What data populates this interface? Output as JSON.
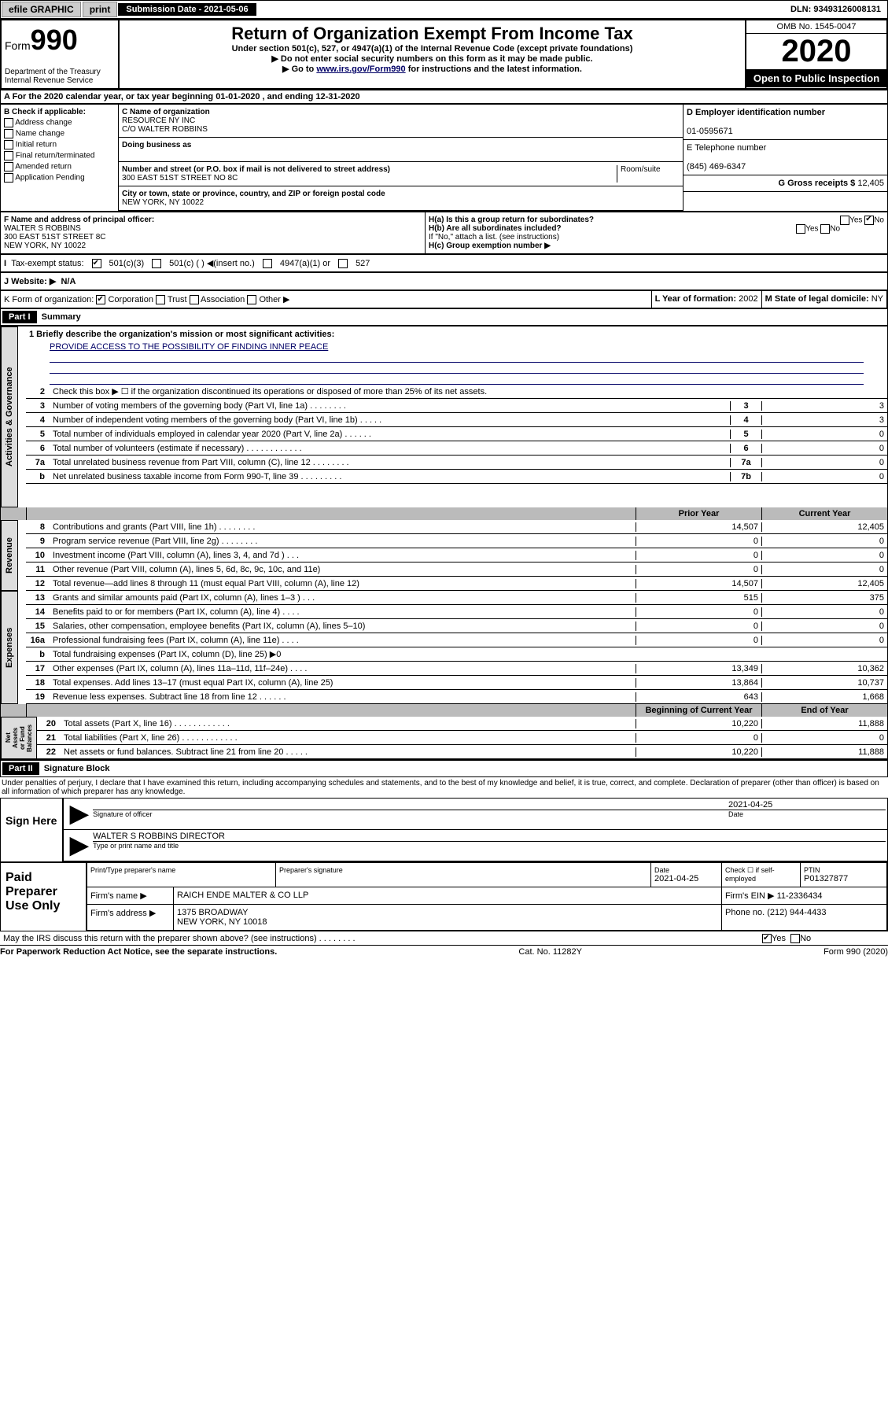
{
  "top": {
    "efile": "efile GRAPHIC",
    "print": "print",
    "sub_label": "Submission Date - 2021-05-06",
    "dln": "DLN: 93493126008131"
  },
  "hdr": {
    "form": "Form",
    "num": "990",
    "title": "Return of Organization Exempt From Income Tax",
    "sub1": "Under section 501(c), 527, or 4947(a)(1) of the Internal Revenue Code (except private foundations)",
    "sub2": "▶ Do not enter social security numbers on this form as it may be made public.",
    "sub3": "▶ Go to www.irs.gov/Form990 for instructions and the latest information.",
    "dept": "Department of the Treasury\nInternal Revenue Service",
    "omb": "OMB No. 1545-0047",
    "yr": "2020",
    "open": "Open to Public Inspection"
  },
  "a_row": "A For the 2020 calendar year, or tax year beginning 01-01-2020    , and ending 12-31-2020",
  "b_checks": {
    "title": "B Check if applicable:",
    "addr": "Address change",
    "name": "Name change",
    "init": "Initial return",
    "final": "Final return/terminated",
    "amend": "Amended return",
    "app": "Application Pending"
  },
  "c": {
    "name_label": "C Name of organization",
    "name": "RESOURCE NY INC",
    "care": "C/O WALTER ROBBINS",
    "dba_label": "Doing business as",
    "addr_label": "Number and street (or P.O. box if mail is not delivered to street address)",
    "suite_label": "Room/suite",
    "addr": "300 EAST 51ST STREET NO 8C",
    "city_label": "City or town, state or province, country, and ZIP or foreign postal code",
    "city": "NEW YORK, NY  10022"
  },
  "d": {
    "label": "D Employer identification number",
    "val": "01-0595671"
  },
  "e": {
    "label": "E Telephone number",
    "val": "(845) 469-6347"
  },
  "g": {
    "label": "G Gross receipts $",
    "val": "12,405"
  },
  "f": {
    "label": "F Name and address of principal officer:",
    "name": "WALTER S ROBBINS",
    "addr1": "300 EAST 51ST STREET 8C",
    "addr2": "NEW YORK, NY  10022"
  },
  "h": {
    "a": "H(a)  Is this a group return for subordinates?",
    "b": "H(b)  Are all subordinates included?",
    "note": "If \"No,\" attach a list. (see instructions)",
    "c": "H(c)  Group exemption number ▶"
  },
  "i_row": {
    "label": "Tax-exempt status:",
    "c1": "501(c)(3)",
    "c2": "501(c) (  ) ◀(insert no.)",
    "c3": "4947(a)(1) or",
    "c4": "527"
  },
  "j_row": {
    "label": "J   Website: ▶",
    "val": "N/A"
  },
  "k_row": {
    "label": "K Form of organization:",
    "c1": "Corporation",
    "c2": "Trust",
    "c3": "Association",
    "c4": "Other ▶"
  },
  "l_row": {
    "label": "L Year of formation:",
    "val": "2002"
  },
  "m_row": {
    "label": "M State of legal domicile:",
    "val": "NY"
  },
  "p1": {
    "hdr": "Part I",
    "title": "Summary"
  },
  "mission": {
    "q": "1  Briefly describe the organization's mission or most significant activities:",
    "txt": "PROVIDE ACCESS TO THE POSSIBILITY OF FINDING INNER PEACE"
  },
  "vtabs": {
    "gov": "Activities & Governance",
    "rev": "Revenue",
    "exp": "Expenses",
    "net": "Net Assets or Fund Balances"
  },
  "gov_lines": [
    {
      "n": "2",
      "t": "Check this box ▶ ☐  if the organization discontinued its operations or disposed of more than 25% of its net assets.",
      "box": "",
      "v": ""
    },
    {
      "n": "3",
      "t": "Number of voting members of the governing body (Part VI, line 1a)   .    .    .    .    .    .    .    .",
      "box": "3",
      "v": "3"
    },
    {
      "n": "4",
      "t": "Number of independent voting members of the governing body (Part VI, line 1b)   .    .    .    .    .",
      "box": "4",
      "v": "3"
    },
    {
      "n": "5",
      "t": "Total number of individuals employed in calendar year 2020 (Part V, line 2a)   .    .    .    .    .    .",
      "box": "5",
      "v": "0"
    },
    {
      "n": "6",
      "t": "Total number of volunteers (estimate if necessary)   .    .    .    .    .    .    .    .    .    .    .    .",
      "box": "6",
      "v": "0"
    },
    {
      "n": "7a",
      "t": "Total unrelated business revenue from Part VIII, column (C), line 12   .    .    .    .    .    .    .    .",
      "box": "7a",
      "v": "0"
    },
    {
      "n": "b",
      "t": "Net unrelated business taxable income from Form 990-T, line 39   .    .    .    .    .    .    .    .    .",
      "box": "7b",
      "v": "0"
    }
  ],
  "two_col_hdr": {
    "py": "Prior Year",
    "cy": "Current Year"
  },
  "rev_lines": [
    {
      "n": "8",
      "t": "Contributions and grants (Part VIII, line 1h)   .    .    .    .    .    .    .    .",
      "py": "14,507",
      "cy": "12,405"
    },
    {
      "n": "9",
      "t": "Program service revenue (Part VIII, line 2g)   .    .    .    .    .    .    .    .",
      "py": "0",
      "cy": "0"
    },
    {
      "n": "10",
      "t": "Investment income (Part VIII, column (A), lines 3, 4, and 7d )    .    .    .",
      "py": "0",
      "cy": "0"
    },
    {
      "n": "11",
      "t": "Other revenue (Part VIII, column (A), lines 5, 6d, 8c, 9c, 10c, and 11e)",
      "py": "0",
      "cy": "0"
    },
    {
      "n": "12",
      "t": "Total revenue—add lines 8 through 11 (must equal Part VIII, column (A), line 12)",
      "py": "14,507",
      "cy": "12,405"
    }
  ],
  "exp_lines": [
    {
      "n": "13",
      "t": "Grants and similar amounts paid (Part IX, column (A), lines 1–3 )   .    .    .",
      "py": "515",
      "cy": "375"
    },
    {
      "n": "14",
      "t": "Benefits paid to or for members (Part IX, column (A), line 4)   .    .    .    .",
      "py": "0",
      "cy": "0"
    },
    {
      "n": "15",
      "t": "Salaries, other compensation, employee benefits (Part IX, column (A), lines 5–10)",
      "py": "0",
      "cy": "0"
    },
    {
      "n": "16a",
      "t": "Professional fundraising fees (Part IX, column (A), line 11e)   .    .    .    .",
      "py": "0",
      "cy": "0"
    },
    {
      "n": "b",
      "t": "Total fundraising expenses (Part IX, column (D), line 25) ▶0",
      "py": "",
      "cy": ""
    },
    {
      "n": "17",
      "t": "Other expenses (Part IX, column (A), lines 11a–11d, 11f–24e)   .    .    .    .",
      "py": "13,349",
      "cy": "10,362"
    },
    {
      "n": "18",
      "t": "Total expenses. Add lines 13–17 (must equal Part IX, column (A), line 25)",
      "py": "13,864",
      "cy": "10,737"
    },
    {
      "n": "19",
      "t": "Revenue less expenses. Subtract line 18 from line 12   .    .    .    .    .    .",
      "py": "643",
      "cy": "1,668"
    }
  ],
  "net_hdr": {
    "py": "Beginning of Current Year",
    "cy": "End of Year"
  },
  "net_lines": [
    {
      "n": "20",
      "t": "Total assets (Part X, line 16)   .    .    .    .    .    .    .    .    .    .    .    .",
      "py": "10,220",
      "cy": "11,888"
    },
    {
      "n": "21",
      "t": "Total liabilities (Part X, line 26)   .    .    .    .    .    .    .    .    .    .    .    .",
      "py": "0",
      "cy": "0"
    },
    {
      "n": "22",
      "t": "Net assets or fund balances. Subtract line 21 from line 20   .    .    .    .    .",
      "py": "10,220",
      "cy": "11,888"
    }
  ],
  "p2": {
    "hdr": "Part II",
    "title": "Signature Block"
  },
  "perjury": "Under penalties of perjury, I declare that I have examined this return, including accompanying schedules and statements, and to the best of my knowledge and belief, it is true, correct, and complete. Declaration of preparer (other than officer) is based on all information of which preparer has any knowledge.",
  "sign": {
    "here": "Sign Here",
    "sig_of": "Signature of officer",
    "date": "2021-04-25",
    "date_lbl": "Date",
    "name": "WALTER S ROBBINS  DIRECTOR",
    "name_lbl": "Type or print name and title"
  },
  "paid": {
    "title": "Paid Preparer Use Only",
    "h1": "Print/Type preparer's name",
    "h2": "Preparer's signature",
    "h3": "Date",
    "h3v": "2021-04-25",
    "h4": "Check ☐ if self-employed",
    "h5": "PTIN",
    "h5v": "P01327877",
    "firm_lbl": "Firm's name    ▶",
    "firm": "RAICH ENDE MALTER & CO LLP",
    "ein_lbl": "Firm's EIN ▶",
    "ein": "11-2336434",
    "addr_lbl": "Firm's address ▶",
    "addr1": "1375 BROADWAY",
    "addr2": "NEW YORK, NY  10018",
    "phone_lbl": "Phone no.",
    "phone": "(212) 944-4433"
  },
  "discuss": "May the IRS discuss this return with the preparer shown above? (see instructions)    .    .    .    .    .    .    .    .",
  "ftr": {
    "l": "For Paperwork Reduction Act Notice, see the separate instructions.",
    "c": "Cat. No. 11282Y",
    "r": "Form 990 (2020)"
  }
}
